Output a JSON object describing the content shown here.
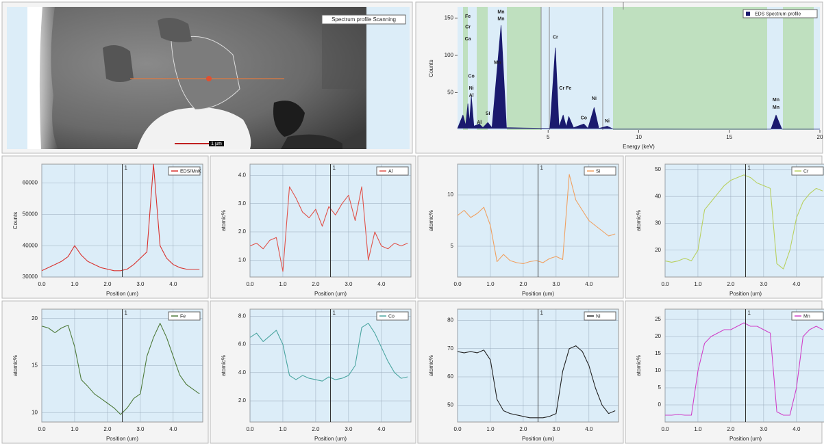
{
  "image_panel": {
    "label": "Spectrum profile Scanning",
    "scale_label": "1 µm"
  },
  "chart_data": [
    {
      "type": "area",
      "legend": "EDS Spectrum profile",
      "ylabel": "Counts",
      "xlabel": "Energy (keV)",
      "color": "#1a1a6e",
      "x": [
        0,
        0.3,
        0.45,
        0.57,
        0.66,
        0.76,
        0.9,
        1.2,
        1.4,
        1.67,
        1.9,
        2.4,
        2.7,
        5.1,
        5.4,
        5.6,
        5.83,
        6.0,
        6.14,
        6.4,
        6.97,
        7.2,
        7.54,
        7.8,
        8.26,
        8.6,
        17.3,
        17.58,
        17.9,
        20
      ],
      "values": [
        2,
        20,
        6,
        35,
        10,
        45,
        5,
        8,
        3,
        10,
        3,
        140,
        3,
        2,
        110,
        4,
        20,
        4,
        18,
        3,
        8,
        2,
        30,
        2,
        5,
        1,
        1,
        20,
        1,
        1
      ],
      "xlim": [
        0,
        20
      ],
      "ylim": [
        0,
        165
      ],
      "xticks": [
        5,
        10,
        15,
        20
      ],
      "yticks": [
        50,
        100,
        150
      ],
      "annotations": [
        {
          "x": 0.57,
          "y": 152,
          "label": "Fe"
        },
        {
          "x": 0.57,
          "y": 138,
          "label": "Cr"
        },
        {
          "x": 0.57,
          "y": 122,
          "label": "Ca"
        },
        {
          "x": 0.76,
          "y": 72,
          "label": "Co"
        },
        {
          "x": 0.76,
          "y": 56,
          "label": "Ni"
        },
        {
          "x": 0.76,
          "y": 46,
          "label": "Al"
        },
        {
          "x": 1.67,
          "y": 22,
          "label": "Si"
        },
        {
          "x": 1.2,
          "y": 10,
          "label": "Al"
        },
        {
          "x": 2.4,
          "y": 158,
          "label": "Mn"
        },
        {
          "x": 2.4,
          "y": 149,
          "label": "Mn"
        },
        {
          "x": 2.2,
          "y": 90,
          "label": "Mn"
        },
        {
          "x": 5.4,
          "y": 124,
          "label": "Cr"
        },
        {
          "x": 5.95,
          "y": 56,
          "label": "Cr Fe"
        },
        {
          "x": 6.97,
          "y": 16,
          "label": "Co"
        },
        {
          "x": 7.54,
          "y": 42,
          "label": "Ni"
        },
        {
          "x": 8.26,
          "y": 12,
          "label": "Ni"
        },
        {
          "x": 17.58,
          "y": 40,
          "label": "Mn"
        },
        {
          "x": 17.58,
          "y": 30,
          "label": "Mn"
        }
      ]
    },
    {
      "type": "line",
      "legend": "EDS/MnK",
      "ylabel": "Counts",
      "xlabel": "Position (um)",
      "color": "#d9302c",
      "x": [
        0,
        0.2,
        0.4,
        0.6,
        0.8,
        1,
        1.2,
        1.4,
        1.6,
        1.8,
        2,
        2.2,
        2.4,
        2.6,
        2.8,
        3,
        3.2,
        3.4,
        3.6,
        3.8,
        4,
        4.2,
        4.4,
        4.6,
        4.8
      ],
      "values": [
        32000,
        33000,
        34000,
        35000,
        36500,
        40000,
        37000,
        35000,
        34000,
        33000,
        32500,
        32000,
        32000,
        32500,
        34000,
        36000,
        38000,
        66000,
        40000,
        36000,
        34000,
        33000,
        32500,
        32500,
        32500
      ],
      "xlim": [
        0,
        4.9
      ],
      "ylim": [
        30000,
        66000
      ],
      "xticks": [
        {
          "value": 0,
          "label": "0.0"
        },
        {
          "value": 1,
          "label": "1.0"
        },
        {
          "value": 2,
          "label": "2.0"
        },
        {
          "value": 3,
          "label": "3.0"
        },
        {
          "value": 4,
          "label": "4.0"
        }
      ],
      "yticks": [
        30000,
        40000,
        50000,
        60000
      ],
      "cursor": {
        "value": 2.45,
        "label": "1"
      }
    },
    {
      "type": "line",
      "legend": "Al",
      "ylabel": "atomic%",
      "xlabel": "Position (um)",
      "color": "#e0524a",
      "x": [
        0,
        0.2,
        0.4,
        0.6,
        0.8,
        1,
        1.2,
        1.4,
        1.6,
        1.8,
        2,
        2.2,
        2.4,
        2.6,
        2.8,
        3,
        3.2,
        3.4,
        3.6,
        3.8,
        4,
        4.2,
        4.4,
        4.6,
        4.8
      ],
      "values": [
        1.5,
        1.6,
        1.4,
        1.7,
        1.8,
        0.6,
        3.6,
        3.2,
        2.7,
        2.5,
        2.8,
        2.2,
        2.9,
        2.6,
        3.0,
        3.3,
        2.4,
        3.6,
        1.0,
        2.0,
        1.5,
        1.4,
        1.6,
        1.5,
        1.6
      ],
      "xlim": [
        0,
        4.9
      ],
      "ylim": [
        0.4,
        4.4
      ],
      "xticks": [
        {
          "value": 0,
          "label": "0.0"
        },
        {
          "value": 1,
          "label": "1.0"
        },
        {
          "value": 2,
          "label": "2.0"
        },
        {
          "value": 3,
          "label": "3.0"
        },
        {
          "value": 4,
          "label": "4.0"
        }
      ],
      "yticks": [
        {
          "value": 1,
          "label": "1.0"
        },
        {
          "value": 2,
          "label": "2.0"
        },
        {
          "value": 3,
          "label": "3.0"
        },
        {
          "value": 4,
          "label": "4.0"
        }
      ],
      "cursor": {
        "value": 2.45,
        "label": "1"
      }
    },
    {
      "type": "line",
      "legend": "Si",
      "ylabel": "atomic%",
      "xlabel": "Position (um)",
      "color": "#f0a060",
      "x": [
        0,
        0.2,
        0.4,
        0.6,
        0.8,
        1,
        1.2,
        1.4,
        1.6,
        1.8,
        2,
        2.2,
        2.4,
        2.6,
        2.8,
        3,
        3.2,
        3.4,
        3.6,
        3.8,
        4,
        4.2,
        4.4,
        4.6,
        4.8
      ],
      "values": [
        8.0,
        8.5,
        7.8,
        8.2,
        8.8,
        7.0,
        3.5,
        4.2,
        3.6,
        3.4,
        3.3,
        3.5,
        3.6,
        3.4,
        3.8,
        4.0,
        3.7,
        12.0,
        9.5,
        8.5,
        7.5,
        7.0,
        6.5,
        6.0,
        6.2
      ],
      "xlim": [
        0,
        4.9
      ],
      "ylim": [
        2,
        13
      ],
      "xticks": [
        {
          "value": 0,
          "label": "0.0"
        },
        {
          "value": 1,
          "label": "1.0"
        },
        {
          "value": 2,
          "label": "2.0"
        },
        {
          "value": 3,
          "label": "3.0"
        },
        {
          "value": 4,
          "label": "4.0"
        }
      ],
      "yticks": [
        5,
        10
      ],
      "cursor": {
        "value": 2.45,
        "label": "1"
      }
    },
    {
      "type": "line",
      "legend": "Cr",
      "ylabel": "atomic%",
      "xlabel": "Position (um)",
      "color": "#b8d060",
      "x": [
        0,
        0.2,
        0.4,
        0.6,
        0.8,
        1,
        1.2,
        1.4,
        1.6,
        1.8,
        2,
        2.2,
        2.4,
        2.6,
        2.8,
        3,
        3.2,
        3.4,
        3.6,
        3.8,
        4,
        4.2,
        4.4,
        4.6,
        4.8
      ],
      "values": [
        16,
        15.5,
        16,
        17,
        16,
        20,
        35,
        38,
        41,
        44,
        46,
        47,
        48,
        47,
        45,
        44,
        43,
        15,
        13,
        20,
        32,
        38,
        41,
        43,
        42
      ],
      "xlim": [
        0,
        4.9
      ],
      "ylim": [
        10,
        52
      ],
      "xticks": [
        {
          "value": 0,
          "label": "0.0"
        },
        {
          "value": 1,
          "label": "1.0"
        },
        {
          "value": 2,
          "label": "2.0"
        },
        {
          "value": 3,
          "label": "3.0"
        },
        {
          "value": 4,
          "label": "4.0"
        }
      ],
      "yticks": [
        20,
        30,
        40,
        50
      ],
      "cursor": {
        "value": 2.45,
        "label": "1"
      }
    },
    {
      "type": "line",
      "legend": "Fe",
      "ylabel": "atomic%",
      "xlabel": "Position (um)",
      "color": "#4e7a3a",
      "x": [
        0,
        0.2,
        0.4,
        0.6,
        0.8,
        1,
        1.2,
        1.4,
        1.6,
        1.8,
        2,
        2.2,
        2.4,
        2.6,
        2.8,
        3,
        3.2,
        3.4,
        3.6,
        3.8,
        4,
        4.2,
        4.4,
        4.6,
        4.8
      ],
      "values": [
        19.2,
        19,
        18.5,
        19,
        19.3,
        17,
        13.5,
        12.8,
        12,
        11.5,
        11,
        10.5,
        9.8,
        10.5,
        11.5,
        12,
        16,
        18,
        19.5,
        18,
        16,
        14,
        13,
        12.5,
        12
      ],
      "xlim": [
        0,
        4.9
      ],
      "ylim": [
        9,
        21
      ],
      "xticks": [
        {
          "value": 0,
          "label": "0.0"
        },
        {
          "value": 1,
          "label": "1.0"
        },
        {
          "value": 2,
          "label": "2.0"
        },
        {
          "value": 3,
          "label": "3.0"
        },
        {
          "value": 4,
          "label": "4.0"
        }
      ],
      "yticks": [
        10,
        15,
        20
      ],
      "cursor": {
        "value": 2.45,
        "label": "1"
      }
    },
    {
      "type": "line",
      "legend": "Co",
      "ylabel": "atomic%",
      "xlabel": "Position (um)",
      "color": "#4aa5a0",
      "x": [
        0,
        0.2,
        0.4,
        0.6,
        0.8,
        1,
        1.2,
        1.4,
        1.6,
        1.8,
        2,
        2.2,
        2.4,
        2.6,
        2.8,
        3,
        3.2,
        3.4,
        3.6,
        3.8,
        4,
        4.2,
        4.4,
        4.6,
        4.8
      ],
      "values": [
        6.5,
        6.8,
        6.2,
        6.6,
        7.0,
        6.0,
        3.8,
        3.5,
        3.8,
        3.6,
        3.5,
        3.4,
        3.7,
        3.5,
        3.6,
        3.8,
        4.5,
        7.2,
        7.5,
        6.8,
        5.8,
        4.8,
        4.0,
        3.6,
        3.7
      ],
      "xlim": [
        0,
        4.9
      ],
      "ylim": [
        0.5,
        8.5
      ],
      "xticks": [
        {
          "value": 0,
          "label": "0.0"
        },
        {
          "value": 1,
          "label": "1.0"
        },
        {
          "value": 2,
          "label": "2.0"
        },
        {
          "value": 3,
          "label": "3.0"
        },
        {
          "value": 4,
          "label": "4.0"
        }
      ],
      "yticks": [
        {
          "value": 2,
          "label": "2.0"
        },
        {
          "value": 4,
          "label": "4.0"
        },
        {
          "value": 6,
          "label": "6.0"
        },
        {
          "value": 8,
          "label": "8.0"
        }
      ],
      "cursor": {
        "value": 2.45,
        "label": "1"
      }
    },
    {
      "type": "line",
      "legend": "Ni",
      "ylabel": "atomic%",
      "xlabel": "Position (um)",
      "color": "#222222",
      "x": [
        0,
        0.2,
        0.4,
        0.6,
        0.8,
        1,
        1.2,
        1.4,
        1.6,
        1.8,
        2,
        2.2,
        2.4,
        2.6,
        2.8,
        3,
        3.2,
        3.4,
        3.6,
        3.8,
        4,
        4.2,
        4.4,
        4.6,
        4.8
      ],
      "values": [
        69,
        68.5,
        69,
        68.5,
        69.5,
        66,
        52,
        48,
        47,
        46.5,
        46,
        45.5,
        45.5,
        45.5,
        46,
        47,
        62,
        70,
        71,
        69,
        64,
        56,
        50,
        47,
        48
      ],
      "xlim": [
        0,
        4.9
      ],
      "ylim": [
        44,
        84
      ],
      "xticks": [
        {
          "value": 0,
          "label": "0.0"
        },
        {
          "value": 1,
          "label": "1.0"
        },
        {
          "value": 2,
          "label": "2.0"
        },
        {
          "value": 3,
          "label": "3.0"
        },
        {
          "value": 4,
          "label": "4.0"
        }
      ],
      "yticks": [
        50,
        60,
        70,
        80
      ],
      "cursor": {
        "value": 2.45,
        "label": "1"
      }
    },
    {
      "type": "line",
      "legend": "Mn",
      "ylabel": "atomic%",
      "xlabel": "Position (um)",
      "color": "#d040c8",
      "x": [
        0,
        0.2,
        0.4,
        0.6,
        0.8,
        1,
        1.2,
        1.4,
        1.6,
        1.8,
        2,
        2.2,
        2.4,
        2.6,
        2.8,
        3,
        3.2,
        3.4,
        3.6,
        3.8,
        4,
        4.2,
        4.4,
        4.6,
        4.8
      ],
      "values": [
        -3,
        -3,
        -2.8,
        -3,
        -3,
        10,
        18,
        20,
        21,
        22,
        22,
        23,
        24,
        23,
        23,
        22,
        21,
        -2,
        -3,
        -3,
        5,
        20,
        22,
        23,
        22
      ],
      "xlim": [
        0,
        4.9
      ],
      "ylim": [
        -5,
        28
      ],
      "xticks": [
        {
          "value": 0,
          "label": "0.0"
        },
        {
          "value": 1,
          "label": "1.0"
        },
        {
          "value": 2,
          "label": "2.0"
        },
        {
          "value": 3,
          "label": "3.0"
        },
        {
          "value": 4,
          "label": "4.0"
        }
      ],
      "yticks": [
        0,
        5,
        10,
        15,
        20,
        25
      ],
      "cursor": {
        "value": 2.45,
        "label": "1"
      }
    }
  ]
}
